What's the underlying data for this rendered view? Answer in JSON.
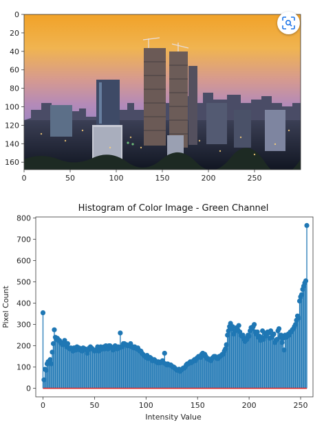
{
  "photo": {
    "x_ticks": [
      "0",
      "50",
      "100",
      "150",
      "200",
      "250"
    ],
    "y_ticks": [
      "0",
      "20",
      "40",
      "60",
      "80",
      "100",
      "120",
      "140",
      "160"
    ],
    "x_range": [
      0,
      300
    ],
    "y_range": [
      0,
      168
    ]
  },
  "lens_button": {
    "icon": "lens-search-icon"
  },
  "chart_data": {
    "type": "stem",
    "title": "Histogram of Color Image - Green Channel",
    "xlabel": "Intensity Value",
    "ylabel": "Pixel Count",
    "xlim": [
      -7,
      262
    ],
    "ylim": [
      -40,
      805
    ],
    "x_ticks": [
      "0",
      "50",
      "100",
      "150",
      "200",
      "250"
    ],
    "y_ticks": [
      "0",
      "100",
      "200",
      "300",
      "400",
      "500",
      "600",
      "700",
      "800"
    ],
    "stem_color": "#1f77b4",
    "baseline_color": "#d62728",
    "x_start": 0,
    "values": [
      355,
      40,
      90,
      85,
      115,
      125,
      120,
      135,
      115,
      170,
      210,
      275,
      240,
      230,
      235,
      225,
      225,
      215,
      210,
      205,
      215,
      225,
      205,
      195,
      210,
      190,
      185,
      190,
      185,
      175,
      190,
      190,
      180,
      195,
      185,
      190,
      180,
      185,
      175,
      190,
      185,
      185,
      180,
      165,
      180,
      190,
      195,
      190,
      185,
      180,
      175,
      180,
      180,
      195,
      175,
      180,
      195,
      185,
      185,
      195,
      185,
      200,
      195,
      185,
      200,
      200,
      195,
      190,
      180,
      190,
      200,
      195,
      185,
      195,
      190,
      260,
      195,
      195,
      210,
      210,
      205,
      205,
      200,
      200,
      200,
      210,
      195,
      195,
      190,
      195,
      190,
      185,
      190,
      180,
      175,
      175,
      165,
      160,
      155,
      150,
      145,
      155,
      140,
      145,
      145,
      140,
      130,
      130,
      135,
      130,
      125,
      120,
      125,
      120,
      120,
      125,
      130,
      120,
      165,
      115,
      110,
      115,
      110,
      110,
      110,
      105,
      100,
      100,
      95,
      90,
      85,
      85,
      90,
      80,
      85,
      90,
      95,
      95,
      100,
      110,
      115,
      115,
      120,
      125,
      120,
      125,
      130,
      135,
      130,
      140,
      145,
      150,
      150,
      145,
      160,
      165,
      155,
      160,
      150,
      140,
      140,
      135,
      135,
      130,
      140,
      145,
      150,
      150,
      145,
      140,
      140,
      150,
      150,
      155,
      160,
      160,
      175,
      185,
      205,
      250,
      270,
      290,
      305,
      280,
      290,
      255,
      270,
      270,
      285,
      275,
      295,
      265,
      250,
      245,
      250,
      230,
      220,
      235,
      230,
      250,
      245,
      270,
      285,
      280,
      290,
      300,
      265,
      255,
      265,
      240,
      245,
      225,
      240,
      270,
      230,
      260,
      245,
      255,
      265,
      260,
      235,
      270,
      240,
      250,
      255,
      215,
      225,
      230,
      270,
      280,
      240,
      250,
      215,
      235,
      180,
      250,
      240,
      245,
      255,
      250,
      265,
      265,
      275,
      280,
      290,
      300,
      320,
      340,
      330,
      410,
      430,
      440,
      465,
      480,
      495,
      505,
      765
    ]
  }
}
